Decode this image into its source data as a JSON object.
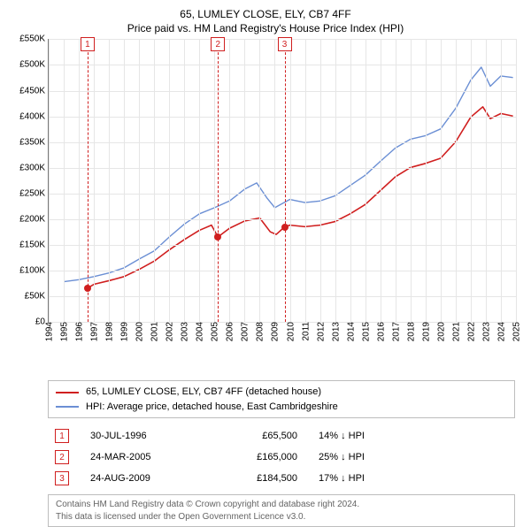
{
  "title_line1": "65, LUMLEY CLOSE, ELY, CB7 4FF",
  "title_line2": "Price paid vs. HM Land Registry's House Price Index (HPI)",
  "chart": {
    "type": "line",
    "background_color": "#ffffff",
    "grid_color": "#e6e6e6",
    "axis_color": "#7a7a7a",
    "x": {
      "min": 1994,
      "max": 2025,
      "ticks": [
        1994,
        1995,
        1996,
        1997,
        1998,
        1999,
        2000,
        2001,
        2002,
        2003,
        2004,
        2005,
        2006,
        2007,
        2008,
        2009,
        2010,
        2011,
        2012,
        2013,
        2014,
        2015,
        2016,
        2017,
        2018,
        2019,
        2020,
        2021,
        2022,
        2023,
        2024,
        2025
      ],
      "tick_fontsize": 10,
      "tick_rotation": -90
    },
    "y": {
      "min": 0,
      "max": 550000,
      "ticks": [
        0,
        50000,
        100000,
        150000,
        200000,
        250000,
        300000,
        350000,
        400000,
        450000,
        500000,
        550000
      ],
      "tick_labels": [
        "£0",
        "£50K",
        "£100K",
        "£150K",
        "£200K",
        "£250K",
        "£300K",
        "£350K",
        "£400K",
        "£450K",
        "£500K",
        "£550K"
      ],
      "tick_fontsize": 10
    },
    "series": [
      {
        "name": "price_paid",
        "label": "65, LUMLEY CLOSE, ELY, CB7 4FF (detached house)",
        "color": "#d01f1f",
        "line_width": 1.6,
        "points": [
          [
            1996.58,
            65500
          ],
          [
            1997,
            73000
          ],
          [
            1998,
            80000
          ],
          [
            1999,
            88000
          ],
          [
            2000,
            102000
          ],
          [
            2001,
            118000
          ],
          [
            2002,
            140000
          ],
          [
            2003,
            160000
          ],
          [
            2004,
            178000
          ],
          [
            2004.8,
            188000
          ],
          [
            2005.23,
            165000
          ],
          [
            2006,
            182000
          ],
          [
            2007,
            196000
          ],
          [
            2008,
            202000
          ],
          [
            2008.7,
            175000
          ],
          [
            2009.1,
            170000
          ],
          [
            2009.65,
            184500
          ],
          [
            2010,
            188000
          ],
          [
            2011,
            185000
          ],
          [
            2012,
            188000
          ],
          [
            2013,
            195000
          ],
          [
            2014,
            210000
          ],
          [
            2015,
            228000
          ],
          [
            2016,
            255000
          ],
          [
            2017,
            282000
          ],
          [
            2018,
            300000
          ],
          [
            2019,
            308000
          ],
          [
            2020,
            318000
          ],
          [
            2021,
            350000
          ],
          [
            2022,
            398000
          ],
          [
            2022.8,
            418000
          ],
          [
            2023.3,
            395000
          ],
          [
            2024,
            405000
          ],
          [
            2024.8,
            400000
          ]
        ]
      },
      {
        "name": "hpi",
        "label": "HPI: Average price, detached house, East Cambridgeshire",
        "color": "#6b8fd4",
        "line_width": 1.4,
        "points": [
          [
            1995,
            78000
          ],
          [
            1996,
            82000
          ],
          [
            1997,
            88000
          ],
          [
            1998,
            95000
          ],
          [
            1999,
            105000
          ],
          [
            2000,
            122000
          ],
          [
            2001,
            138000
          ],
          [
            2002,
            165000
          ],
          [
            2003,
            190000
          ],
          [
            2004,
            210000
          ],
          [
            2005,
            222000
          ],
          [
            2006,
            235000
          ],
          [
            2007,
            258000
          ],
          [
            2007.8,
            270000
          ],
          [
            2008.5,
            240000
          ],
          [
            2009,
            222000
          ],
          [
            2010,
            238000
          ],
          [
            2011,
            232000
          ],
          [
            2012,
            235000
          ],
          [
            2013,
            245000
          ],
          [
            2014,
            265000
          ],
          [
            2015,
            285000
          ],
          [
            2016,
            312000
          ],
          [
            2017,
            338000
          ],
          [
            2018,
            355000
          ],
          [
            2019,
            362000
          ],
          [
            2020,
            375000
          ],
          [
            2021,
            415000
          ],
          [
            2022,
            470000
          ],
          [
            2022.7,
            495000
          ],
          [
            2023.3,
            458000
          ],
          [
            2024,
            478000
          ],
          [
            2024.8,
            475000
          ]
        ]
      }
    ],
    "markers": [
      {
        "id": "1",
        "x": 1996.58,
        "y": 65500
      },
      {
        "id": "2",
        "x": 2005.23,
        "y": 165000
      },
      {
        "id": "3",
        "x": 2009.65,
        "y": 184500
      }
    ],
    "marker_color": "#d01f1f",
    "marker_dot_color": "#d01f1f"
  },
  "legend": {
    "border_color": "#bdbdbd",
    "items": [
      {
        "color": "#d01f1f",
        "label": "65, LUMLEY CLOSE, ELY, CB7 4FF (detached house)"
      },
      {
        "color": "#6b8fd4",
        "label": "HPI: Average price, detached house, East Cambridgeshire"
      }
    ]
  },
  "events": [
    {
      "id": "1",
      "date": "30-JUL-1996",
      "price": "£65,500",
      "diff": "14% ↓ HPI"
    },
    {
      "id": "2",
      "date": "24-MAR-2005",
      "price": "£165,000",
      "diff": "25% ↓ HPI"
    },
    {
      "id": "3",
      "date": "24-AUG-2009",
      "price": "£184,500",
      "diff": "17% ↓ HPI"
    }
  ],
  "footnote_line1": "Contains HM Land Registry data © Crown copyright and database right 2024.",
  "footnote_line2": "This data is licensed under the Open Government Licence v3.0.",
  "footnote_color": "#646464"
}
